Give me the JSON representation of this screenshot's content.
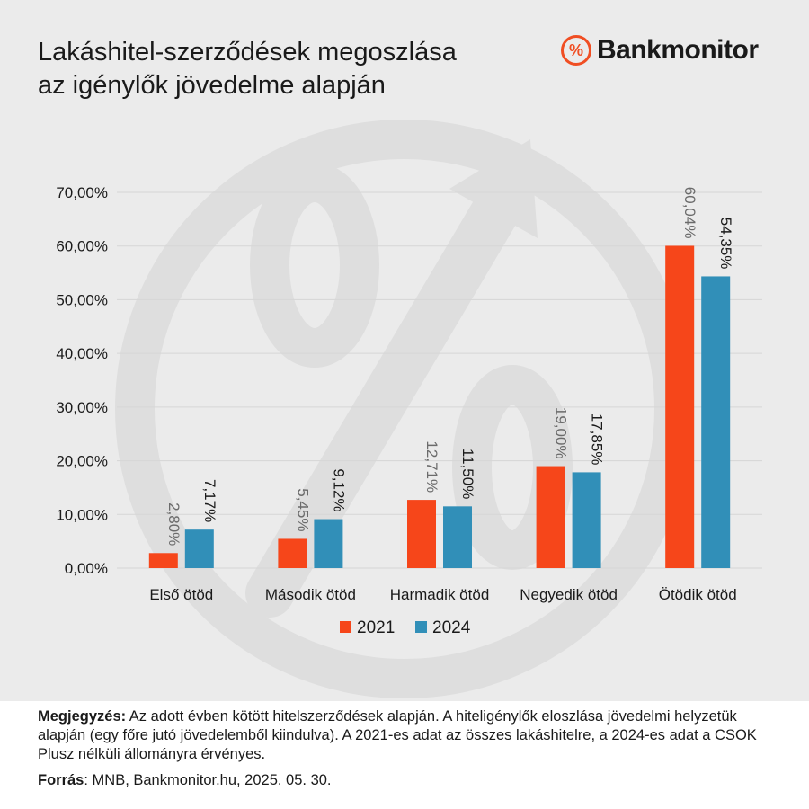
{
  "title": [
    "Lakáshitel-szerződések megoszlása",
    "az igénylők jövedelme alapján"
  ],
  "logo": {
    "icon": "percent-icon",
    "symbol": "%",
    "text": "Bankmonitor"
  },
  "colors": {
    "series_2021": "#f6461a",
    "series_2024": "#318fb8",
    "accent": "#f04e23",
    "background": "#ebebeb"
  },
  "chart_data": {
    "type": "bar",
    "categories": [
      "Első ötöd",
      "Második ötöd",
      "Harmadik ötöd",
      "Negyedik ötöd",
      "Ötödik ötöd"
    ],
    "series": [
      {
        "name": "2021",
        "values": [
          2.8,
          5.45,
          12.71,
          19.0,
          60.04
        ],
        "labels": [
          "2,80%",
          "5,45%",
          "12,71%",
          "19,00%",
          "60,04%"
        ]
      },
      {
        "name": "2024",
        "values": [
          7.17,
          9.12,
          11.5,
          17.85,
          54.35
        ],
        "labels": [
          "7,17%",
          "9,12%",
          "11,50%",
          "17,85%",
          "54,35%"
        ]
      }
    ],
    "ylim": [
      0,
      70
    ],
    "yticks": [
      "0,00%",
      "10,00%",
      "20,00%",
      "30,00%",
      "40,00%",
      "50,00%",
      "60,00%",
      "70,00%"
    ],
    "grid": true,
    "legend": "bottom-center"
  },
  "footer": {
    "note_label": "Megjegyzés:",
    "note_text": " Az adott évben kötött hitelszerződések alapján. A hiteligénylők eloszlása jövedelmi helyzetük alapján (egy főre jutó jövedelemből kiindulva). A 2021-es adat az összes lakáshitelre, a 2024-es adat a CSOK Plusz nélküli állományra érvényes.",
    "source_label": "Forrás",
    "source_text": ": MNB, Bankmonitor.hu, 2025. 05. 30."
  }
}
